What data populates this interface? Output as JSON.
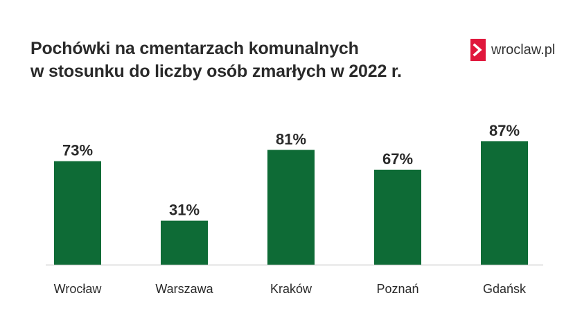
{
  "title": {
    "line1": "Pochówki na cmentarzach komunalnych",
    "line2": "w stosunku do liczby osób zmarłych w 2022 r."
  },
  "logo": {
    "text": "wroclaw.pl",
    "icon": "chevron-right-icon",
    "accent_color": "#e0173c"
  },
  "colors": {
    "bar": "#0e6b36",
    "axis": "#d6d6d6",
    "text": "#2a2a2a"
  },
  "chart_data": {
    "type": "bar",
    "title": "Pochówki na cmentarzach komunalnych w stosunku do liczby osób zmarłych w 2022 r.",
    "categories": [
      "Wrocław",
      "Warszawa",
      "Kraków",
      "Poznań",
      "Gdańsk"
    ],
    "values": [
      73,
      31,
      81,
      67,
      87
    ],
    "value_labels": [
      "73%",
      "31%",
      "81%",
      "67%",
      "87%"
    ],
    "unit": "%",
    "xlabel": "",
    "ylabel": "",
    "ylim": [
      0,
      100
    ],
    "grid": false,
    "legend": "none"
  }
}
